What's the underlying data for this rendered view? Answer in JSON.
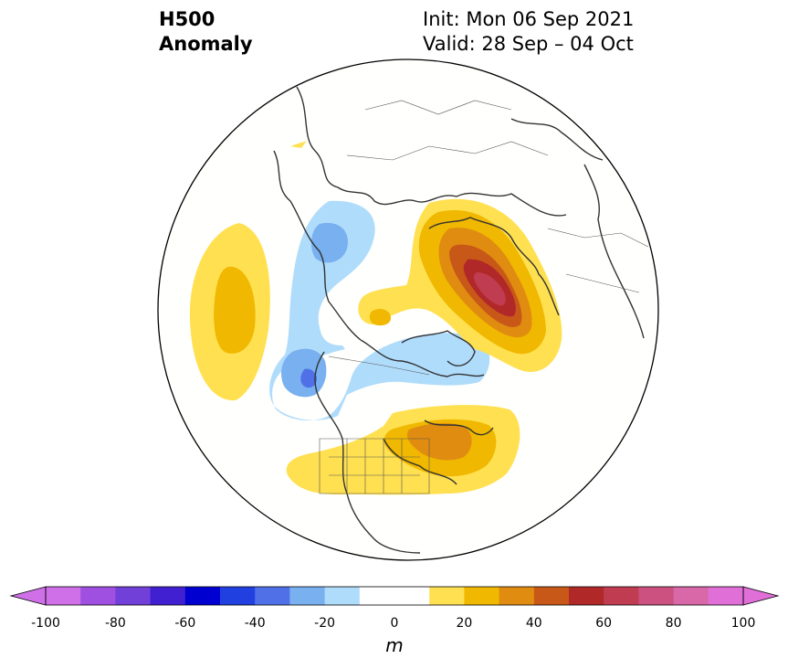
{
  "title": {
    "left_line1": "H500",
    "left_line2": "Anomaly",
    "right_line1": "Init: Mon 06 Sep 2021",
    "right_line2": "Valid: 28 Sep – 04 Oct"
  },
  "colorbar": {
    "unit": "m",
    "ticks": [
      "-100",
      "-80",
      "-60",
      "-40",
      "-20",
      "0",
      "20",
      "40",
      "60",
      "80",
      "100"
    ],
    "colors": [
      "#d070e8",
      "#a050e0",
      "#7040d8",
      "#4020d0",
      "#0000d0",
      "#2040e0",
      "#5070e8",
      "#78b0f0",
      "#b0dcfc",
      "#ffffff",
      "#ffffff",
      "#ffe050",
      "#f0b800",
      "#e08c10",
      "#c85818",
      "#b02828",
      "#c03c50",
      "#cc5080",
      "#d868a8",
      "#e070d8"
    ],
    "under_color": "#d070e8",
    "over_color": "#e070d8"
  }
}
